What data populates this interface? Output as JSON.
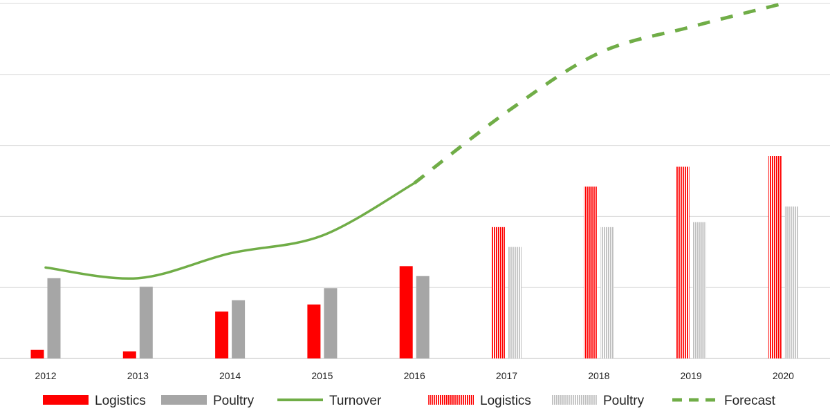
{
  "chart_data": {
    "type": "bar",
    "categories": [
      "2012",
      "2013",
      "2014",
      "2015",
      "2016",
      "2017",
      "2018",
      "2019",
      "2020"
    ],
    "ylim": [
      0,
      5
    ],
    "grid": true,
    "series": [
      {
        "name": "Logistics",
        "kind": "bar",
        "style": "solid",
        "color": "#ff0000",
        "values": [
          0.12,
          0.1,
          0.66,
          0.76,
          1.3,
          null,
          null,
          null,
          null
        ]
      },
      {
        "name": "Poultry",
        "kind": "bar",
        "style": "solid",
        "color": "#a6a6a6",
        "values": [
          1.13,
          1.01,
          0.82,
          0.99,
          1.16,
          null,
          null,
          null,
          null
        ]
      },
      {
        "name": "Turnover",
        "kind": "line",
        "style": "solid",
        "color": "#70ad47",
        "values": [
          1.28,
          1.13,
          1.48,
          1.73,
          2.47,
          null,
          null,
          null,
          null
        ]
      },
      {
        "name": "Logistics",
        "kind": "bar",
        "style": "striped",
        "color": "#ff0000",
        "values": [
          null,
          null,
          null,
          null,
          null,
          1.85,
          2.42,
          2.7,
          2.85
        ]
      },
      {
        "name": "Poultry",
        "kind": "bar",
        "style": "striped",
        "color": "#bfbfbf",
        "values": [
          null,
          null,
          null,
          null,
          null,
          1.57,
          1.85,
          1.92,
          2.14
        ]
      },
      {
        "name": "Forecast",
        "kind": "line",
        "style": "dashed",
        "color": "#70ad47",
        "values": [
          null,
          null,
          null,
          null,
          2.47,
          3.47,
          4.3,
          4.67,
          5.0
        ]
      }
    ],
    "legend": {
      "position": "bottom",
      "entries": [
        "Logistics",
        "Poultry",
        "Turnover",
        "Logistics",
        "Poultry",
        "Forecast"
      ]
    }
  }
}
